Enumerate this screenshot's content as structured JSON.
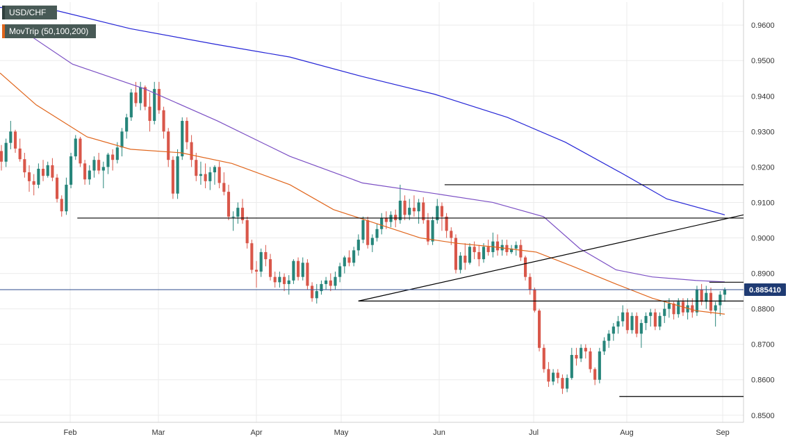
{
  "chart_data": {
    "type": "candlestick",
    "symbol": "USD/CHF",
    "indicator_label": "MovTrip (50,100,200)",
    "y_ticks": [
      "0.9600",
      "0.9500",
      "0.9400",
      "0.9300",
      "0.9200",
      "0.9100",
      "0.9000",
      "0.8900",
      "0.8800",
      "0.8700",
      "0.8600",
      "0.8500"
    ],
    "x_ticks": [
      "Feb",
      "Mar",
      "Apr",
      "May",
      "Jun",
      "Jul",
      "Aug",
      "Sep"
    ],
    "ylim": [
      0.848,
      0.9665
    ],
    "last_price": "0.885410",
    "last_price_value": 0.88541,
    "colors": {
      "up": "#26857a",
      "down": "#d9574a",
      "ma50": "#e0651b",
      "ma100": "#7b4fc4",
      "ma200": "#2424d6",
      "grid": "#ebebeb",
      "price_line": "#2c4a8c",
      "label_bg": "#1f3b73"
    },
    "candles": [
      [
        0.9245,
        0.9262,
        0.919,
        0.9215
      ],
      [
        0.9215,
        0.928,
        0.92,
        0.9268
      ],
      [
        0.9268,
        0.933,
        0.925,
        0.93
      ],
      [
        0.93,
        0.9305,
        0.924,
        0.9252
      ],
      [
        0.9252,
        0.928,
        0.9215,
        0.9222
      ],
      [
        0.9222,
        0.924,
        0.917,
        0.9185
      ],
      [
        0.9185,
        0.9205,
        0.913,
        0.916
      ],
      [
        0.916,
        0.918,
        0.912,
        0.915
      ],
      [
        0.915,
        0.921,
        0.914,
        0.9195
      ],
      [
        0.9195,
        0.922,
        0.916,
        0.9175
      ],
      [
        0.9175,
        0.9215,
        0.917,
        0.9205
      ],
      [
        0.9205,
        0.9225,
        0.916,
        0.917
      ],
      [
        0.917,
        0.918,
        0.91,
        0.911
      ],
      [
        0.911,
        0.912,
        0.906,
        0.9075
      ],
      [
        0.9075,
        0.917,
        0.9065,
        0.915
      ],
      [
        0.915,
        0.924,
        0.914,
        0.923
      ],
      [
        0.923,
        0.929,
        0.922,
        0.928
      ],
      [
        0.928,
        0.9285,
        0.92,
        0.921
      ],
      [
        0.921,
        0.922,
        0.915,
        0.9165
      ],
      [
        0.9165,
        0.9205,
        0.915,
        0.919
      ],
      [
        0.919,
        0.923,
        0.917,
        0.922
      ],
      [
        0.922,
        0.924,
        0.918,
        0.919
      ],
      [
        0.919,
        0.9215,
        0.914,
        0.92
      ],
      [
        0.92,
        0.924,
        0.918,
        0.9235
      ],
      [
        0.9235,
        0.925,
        0.919,
        0.922
      ],
      [
        0.922,
        0.927,
        0.921,
        0.9255
      ],
      [
        0.9255,
        0.931,
        0.923,
        0.93
      ],
      [
        0.93,
        0.935,
        0.928,
        0.934
      ],
      [
        0.934,
        0.942,
        0.933,
        0.941
      ],
      [
        0.941,
        0.944,
        0.937,
        0.938
      ],
      [
        0.938,
        0.944,
        0.936,
        0.9425
      ],
      [
        0.9425,
        0.943,
        0.936,
        0.937
      ],
      [
        0.937,
        0.941,
        0.93,
        0.933
      ],
      [
        0.933,
        0.944,
        0.932,
        0.942
      ],
      [
        0.942,
        0.944,
        0.935,
        0.936
      ],
      [
        0.936,
        0.937,
        0.928,
        0.93
      ],
      [
        0.93,
        0.931,
        0.92,
        0.922
      ],
      [
        0.922,
        0.923,
        0.911,
        0.9125
      ],
      [
        0.9125,
        0.925,
        0.911,
        0.923
      ],
      [
        0.923,
        0.934,
        0.922,
        0.933
      ],
      [
        0.933,
        0.934,
        0.925,
        0.927
      ],
      [
        0.927,
        0.929,
        0.92,
        0.922
      ],
      [
        0.922,
        0.924,
        0.916,
        0.9175
      ],
      [
        0.9175,
        0.9215,
        0.915,
        0.918
      ],
      [
        0.918,
        0.921,
        0.914,
        0.916
      ],
      [
        0.916,
        0.92,
        0.9135,
        0.9185
      ],
      [
        0.9185,
        0.9205,
        0.915,
        0.92
      ],
      [
        0.92,
        0.9215,
        0.914,
        0.9155
      ],
      [
        0.9155,
        0.9185,
        0.912,
        0.913
      ],
      [
        0.913,
        0.915,
        0.905,
        0.906
      ],
      [
        0.906,
        0.9075,
        0.902,
        0.906
      ],
      [
        0.906,
        0.91,
        0.904,
        0.9085
      ],
      [
        0.9085,
        0.911,
        0.904,
        0.905
      ],
      [
        0.905,
        0.906,
        0.897,
        0.8985
      ],
      [
        0.8985,
        0.8995,
        0.89,
        0.891
      ],
      [
        0.891,
        0.8935,
        0.886,
        0.8905
      ],
      [
        0.8905,
        0.897,
        0.889,
        0.896
      ],
      [
        0.896,
        0.898,
        0.892,
        0.894
      ],
      [
        0.894,
        0.8955,
        0.888,
        0.889
      ],
      [
        0.889,
        0.8905,
        0.886,
        0.8875
      ],
      [
        0.8875,
        0.8905,
        0.886,
        0.889
      ],
      [
        0.889,
        0.89,
        0.885,
        0.887
      ],
      [
        0.887,
        0.8895,
        0.884,
        0.888
      ],
      [
        0.888,
        0.894,
        0.887,
        0.8935
      ],
      [
        0.8935,
        0.8945,
        0.888,
        0.889
      ],
      [
        0.889,
        0.8945,
        0.888,
        0.893
      ],
      [
        0.893,
        0.894,
        0.8855,
        0.8865
      ],
      [
        0.8865,
        0.8875,
        0.882,
        0.883
      ],
      [
        0.883,
        0.887,
        0.8815,
        0.885
      ],
      [
        0.885,
        0.888,
        0.884,
        0.887
      ],
      [
        0.887,
        0.889,
        0.8855,
        0.888
      ],
      [
        0.888,
        0.89,
        0.885,
        0.8865
      ],
      [
        0.8865,
        0.8905,
        0.8855,
        0.889
      ],
      [
        0.889,
        0.893,
        0.8875,
        0.892
      ],
      [
        0.892,
        0.895,
        0.89,
        0.8945
      ],
      [
        0.8945,
        0.8965,
        0.892,
        0.893
      ],
      [
        0.893,
        0.8975,
        0.892,
        0.8965
      ],
      [
        0.8965,
        0.901,
        0.895,
        0.8995
      ],
      [
        0.8995,
        0.906,
        0.8985,
        0.905
      ],
      [
        0.905,
        0.906,
        0.897,
        0.898
      ],
      [
        0.898,
        0.901,
        0.896,
        0.9
      ],
      [
        0.9,
        0.904,
        0.899,
        0.9025
      ],
      [
        0.9025,
        0.907,
        0.901,
        0.9055
      ],
      [
        0.9055,
        0.9075,
        0.9025,
        0.9045
      ],
      [
        0.9045,
        0.9075,
        0.903,
        0.9065
      ],
      [
        0.9065,
        0.908,
        0.903,
        0.905
      ],
      [
        0.905,
        0.915,
        0.904,
        0.9105
      ],
      [
        0.9105,
        0.912,
        0.905,
        0.9065
      ],
      [
        0.9065,
        0.911,
        0.905,
        0.9085
      ],
      [
        0.9085,
        0.912,
        0.906,
        0.9075
      ],
      [
        0.9075,
        0.911,
        0.904,
        0.91
      ],
      [
        0.91,
        0.9115,
        0.904,
        0.905
      ],
      [
        0.905,
        0.907,
        0.898,
        0.899
      ],
      [
        0.899,
        0.906,
        0.898,
        0.905
      ],
      [
        0.905,
        0.911,
        0.904,
        0.909
      ],
      [
        0.909,
        0.91,
        0.902,
        0.906
      ],
      [
        0.906,
        0.907,
        0.9,
        0.902
      ],
      [
        0.902,
        0.903,
        0.898,
        0.9
      ],
      [
        0.9,
        0.901,
        0.89,
        0.891
      ],
      [
        0.891,
        0.896,
        0.89,
        0.895
      ],
      [
        0.895,
        0.8985,
        0.891,
        0.893
      ],
      [
        0.893,
        0.8985,
        0.8925,
        0.8975
      ],
      [
        0.8975,
        0.899,
        0.894,
        0.896
      ],
      [
        0.896,
        0.898,
        0.892,
        0.894
      ],
      [
        0.894,
        0.8985,
        0.893,
        0.8975
      ],
      [
        0.8975,
        0.8995,
        0.895,
        0.896
      ],
      [
        0.896,
        0.9015,
        0.8945,
        0.899
      ],
      [
        0.899,
        0.901,
        0.895,
        0.8965
      ],
      [
        0.8965,
        0.8995,
        0.895,
        0.898
      ],
      [
        0.898,
        0.8995,
        0.895,
        0.896
      ],
      [
        0.896,
        0.898,
        0.8955,
        0.897
      ],
      [
        0.897,
        0.899,
        0.895,
        0.898
      ],
      [
        0.898,
        0.8995,
        0.8935,
        0.8945
      ],
      [
        0.8945,
        0.895,
        0.888,
        0.889
      ],
      [
        0.889,
        0.89,
        0.884,
        0.8855
      ],
      [
        0.8855,
        0.886,
        0.879,
        0.8795
      ],
      [
        0.8795,
        0.88,
        0.868,
        0.869
      ],
      [
        0.869,
        0.87,
        0.862,
        0.863
      ],
      [
        0.863,
        0.865,
        0.858,
        0.8595
      ],
      [
        0.8595,
        0.863,
        0.8585,
        0.862
      ],
      [
        0.862,
        0.863,
        0.859,
        0.8605
      ],
      [
        0.8605,
        0.8615,
        0.856,
        0.8575
      ],
      [
        0.8575,
        0.8615,
        0.8565,
        0.8605
      ],
      [
        0.8605,
        0.869,
        0.86,
        0.867
      ],
      [
        0.867,
        0.869,
        0.864,
        0.866
      ],
      [
        0.866,
        0.87,
        0.865,
        0.869
      ],
      [
        0.869,
        0.87,
        0.866,
        0.868
      ],
      [
        0.868,
        0.869,
        0.862,
        0.863
      ],
      [
        0.863,
        0.8635,
        0.8585,
        0.86
      ],
      [
        0.86,
        0.869,
        0.859,
        0.868
      ],
      [
        0.868,
        0.872,
        0.867,
        0.871
      ],
      [
        0.871,
        0.874,
        0.869,
        0.873
      ],
      [
        0.873,
        0.876,
        0.871,
        0.875
      ],
      [
        0.875,
        0.878,
        0.873,
        0.8765
      ],
      [
        0.8765,
        0.881,
        0.875,
        0.879
      ],
      [
        0.879,
        0.88,
        0.873,
        0.874
      ],
      [
        0.874,
        0.879,
        0.873,
        0.878
      ],
      [
        0.878,
        0.879,
        0.872,
        0.873
      ],
      [
        0.873,
        0.877,
        0.869,
        0.876
      ],
      [
        0.876,
        0.879,
        0.874,
        0.878
      ],
      [
        0.878,
        0.88,
        0.875,
        0.879
      ],
      [
        0.879,
        0.88,
        0.874,
        0.875
      ],
      [
        0.875,
        0.879,
        0.874,
        0.878
      ],
      [
        0.878,
        0.882,
        0.876,
        0.88
      ],
      [
        0.88,
        0.883,
        0.8775,
        0.8815
      ],
      [
        0.8815,
        0.882,
        0.877,
        0.8785
      ],
      [
        0.8785,
        0.883,
        0.8775,
        0.882
      ],
      [
        0.882,
        0.883,
        0.878,
        0.879
      ],
      [
        0.879,
        0.883,
        0.877,
        0.881
      ],
      [
        0.881,
        0.883,
        0.8775,
        0.879
      ],
      [
        0.879,
        0.8865,
        0.878,
        0.8855
      ],
      [
        0.8855,
        0.887,
        0.881,
        0.882
      ],
      [
        0.882,
        0.8865,
        0.88,
        0.8845
      ],
      [
        0.8845,
        0.886,
        0.8785,
        0.8795
      ],
      [
        0.8795,
        0.882,
        0.875,
        0.881
      ],
      [
        0.881,
        0.885,
        0.878,
        0.884
      ],
      [
        0.884,
        0.886,
        0.882,
        0.8854
      ]
    ],
    "ma50": [
      [
        0,
        0.9465
      ],
      [
        0.05,
        0.9375
      ],
      [
        0.12,
        0.9285
      ],
      [
        0.18,
        0.925
      ],
      [
        0.25,
        0.924
      ],
      [
        0.32,
        0.921
      ],
      [
        0.4,
        0.915
      ],
      [
        0.46,
        0.908
      ],
      [
        0.52,
        0.904
      ],
      [
        0.58,
        0.9
      ],
      [
        0.63,
        0.8985
      ],
      [
        0.68,
        0.8975
      ],
      [
        0.74,
        0.896
      ],
      [
        0.79,
        0.892
      ],
      [
        0.85,
        0.887
      ],
      [
        0.9,
        0.883
      ],
      [
        0.96,
        0.8795
      ],
      [
        1.0,
        0.8785
      ]
    ],
    "ma100": [
      [
        0.02,
        0.96
      ],
      [
        0.1,
        0.949
      ],
      [
        0.2,
        0.942
      ],
      [
        0.3,
        0.933
      ],
      [
        0.4,
        0.923
      ],
      [
        0.5,
        0.9155
      ],
      [
        0.6,
        0.9125
      ],
      [
        0.68,
        0.91
      ],
      [
        0.75,
        0.906
      ],
      [
        0.8,
        0.897
      ],
      [
        0.85,
        0.891
      ],
      [
        0.9,
        0.889
      ],
      [
        0.96,
        0.888
      ],
      [
        1.0,
        0.8876
      ]
    ],
    "ma200": [
      [
        0.0,
        0.965
      ],
      [
        0.08,
        0.964
      ],
      [
        0.18,
        0.959
      ],
      [
        0.3,
        0.9545
      ],
      [
        0.4,
        0.951
      ],
      [
        0.5,
        0.9455
      ],
      [
        0.6,
        0.9405
      ],
      [
        0.7,
        0.934
      ],
      [
        0.78,
        0.927
      ],
      [
        0.86,
        0.918
      ],
      [
        0.92,
        0.911
      ],
      [
        1.0,
        0.9065
      ]
    ],
    "levels": [
      {
        "y": 0.915,
        "x1": 0.598,
        "x2": 1.0
      },
      {
        "y": 0.9056,
        "x1": 0.104,
        "x2": 1.0
      },
      {
        "y": 0.8875,
        "x1": 0.954,
        "x2": 1.0
      },
      {
        "y": 0.8822,
        "x1": 0.482,
        "x2": 1.0
      },
      {
        "y": 0.8553,
        "x1": 0.833,
        "x2": 1.0
      }
    ],
    "trendline": {
      "x1": 0.482,
      "y1": 0.8822,
      "x2": 1.0,
      "y2": 0.9065
    }
  }
}
